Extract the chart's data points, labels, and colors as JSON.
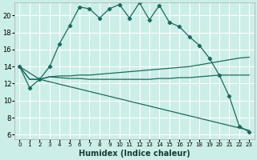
{
  "xlabel": "Humidex (Indice chaleur)",
  "background_color": "#cceee8",
  "grid_color": "#ffffff",
  "line_color": "#1a6b5e",
  "xlim": [
    -0.5,
    23.5
  ],
  "ylim": [
    5.5,
    21.5
  ],
  "yticks": [
    6,
    8,
    10,
    12,
    14,
    16,
    18,
    20
  ],
  "xticks": [
    0,
    1,
    2,
    3,
    4,
    5,
    6,
    7,
    8,
    9,
    10,
    11,
    12,
    13,
    14,
    15,
    16,
    17,
    18,
    19,
    20,
    21,
    22,
    23
  ],
  "line1_x": [
    0,
    1,
    2,
    3,
    4,
    5,
    6,
    7,
    8,
    9,
    10,
    11,
    12,
    13,
    14,
    15,
    16,
    17,
    18,
    19,
    20,
    21,
    22,
    23
  ],
  "line1_y": [
    14.0,
    11.5,
    12.5,
    14.0,
    16.7,
    18.8,
    21.0,
    20.8,
    19.7,
    20.8,
    21.3,
    19.7,
    21.5,
    19.5,
    21.2,
    19.2,
    18.7,
    17.5,
    16.5,
    15.0,
    13.0,
    10.5,
    7.0,
    6.3
  ],
  "line2_x": [
    0,
    1,
    2,
    3,
    4,
    5,
    6,
    7,
    8,
    9,
    10,
    11,
    12,
    13,
    14,
    15,
    16,
    17,
    18,
    19,
    20,
    21,
    22,
    23
  ],
  "line2_y": [
    14.0,
    12.5,
    12.5,
    12.8,
    12.9,
    12.9,
    13.0,
    13.0,
    13.1,
    13.2,
    13.3,
    13.4,
    13.5,
    13.6,
    13.7,
    13.8,
    13.9,
    14.0,
    14.2,
    14.4,
    14.6,
    14.8,
    15.0,
    15.1
  ],
  "line3_x": [
    0,
    1,
    2,
    3,
    4,
    5,
    6,
    7,
    8,
    9,
    10,
    11,
    12,
    13,
    14,
    15,
    16,
    17,
    18,
    19,
    20,
    21,
    22,
    23
  ],
  "line3_y": [
    14.0,
    12.5,
    12.5,
    12.8,
    12.7,
    12.6,
    12.6,
    12.5,
    12.5,
    12.5,
    12.5,
    12.5,
    12.5,
    12.5,
    12.6,
    12.6,
    12.7,
    12.7,
    12.8,
    12.9,
    13.0,
    13.0,
    13.0,
    13.0
  ],
  "line4_x": [
    0,
    2,
    23
  ],
  "line4_y": [
    14.0,
    12.5,
    6.5
  ]
}
